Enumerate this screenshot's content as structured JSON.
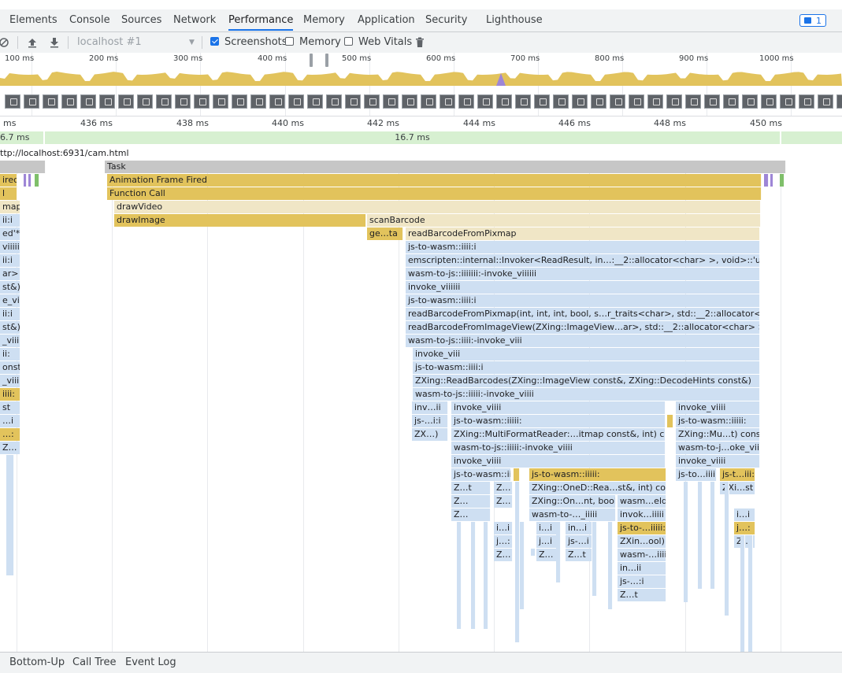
{
  "tabs": [
    "Elements",
    "Console",
    "Sources",
    "Network",
    "Performance",
    "Memory",
    "Application",
    "Security",
    "Lighthouse"
  ],
  "active_tab": "Performance",
  "issues_count": "1",
  "toolbar": {
    "profile_select": "localhost #1",
    "screenshots_label": "Screenshots",
    "screenshots_checked": true,
    "memory_label": "Memory",
    "memory_checked": false,
    "webvitals_label": "Web Vitals",
    "webvitals_checked": false
  },
  "overview_ticks": [
    "100 ms",
    "200 ms",
    "300 ms",
    "400 ms",
    "500 ms",
    "600 ms",
    "700 ms",
    "800 ms",
    "900 ms",
    "1000 ms"
  ],
  "ruler_ticks": [
    "ms",
    "436 ms",
    "438 ms",
    "440 ms",
    "442 ms",
    "444 ms",
    "446 ms",
    "448 ms",
    "450 ms"
  ],
  "frames": [
    "6.7 ms",
    "16.7 ms"
  ],
  "url": "ttp://localhost:6931/cam.html",
  "colors": {
    "task": "#c6c6c6",
    "script": "#e2c35c",
    "script_light": "#f0e6c6",
    "wasm": "#cedff2",
    "accent": "#1a73e8",
    "purple": "#9e86d6",
    "green": "#7fbf6a"
  },
  "flame": {
    "main": [
      "Task",
      "Animation Frame Fired",
      "Function Call",
      "drawVideo",
      "drawImage",
      "scanBarcode",
      "ge…ta",
      "readBarcodeFromPixmap",
      "js-to-wasm::iiii:i",
      "emscripten::internal::Invoker<ReadResult, in…:__2::allocator<char> >, void>::'unnamed'*)",
      "wasm-to-js::iiiiiii:-invoke_viiiiii",
      "invoke_viiiiii",
      "js-to-wasm::iiii:i",
      "readBarcodeFromPixmap(int, int, int, bool, s…r_traits<char>, std::__2::allocator<char> >)",
      "readBarcodeFromImageView(ZXing::ImageView…ar>, std::__2::allocator<char> > const&)",
      "wasm-to-js::iiii:-invoke_viii",
      "invoke_viii",
      "js-to-wasm::iiii:i",
      "ZXing::ReadBarcodes(ZXing::ImageView const&, ZXing::DecodeHints const&)",
      "wasm-to-js::iiiii:-invoke_viiii"
    ],
    "branch_a": [
      "inv…ii",
      "js-…i:i",
      "ZX…)"
    ],
    "branch_b": [
      "invoke_viiii",
      "js-to-wasm::iiiii:",
      "ZXing::MultiFormatReader:…itmap const&, int) const",
      "wasm-to-js::iiiii:-invoke_viiii",
      "invoke_viiii",
      "js-to-wasm::iiiii:"
    ],
    "branch_b_sub": [
      "Z…t",
      "Z…",
      "Z…",
      "Z…",
      "Z…"
    ],
    "branch_c": [
      "js-to-wasm::iiiii:",
      "ZXing::OneD::Rea…st&, int) const",
      "ZXing::On…nt, bool)",
      "wasm-to-…_iiiii",
      "wasm…eld",
      "invok…iiiii",
      "js-to-…iiiii:",
      "ZXin…ool)",
      "wasm-…iiii",
      "in…ii",
      "js-…:i",
      "Z…t"
    ],
    "branch_c_small": [
      "i…i",
      "j…:",
      "Z…",
      "i…i",
      "j…i",
      "Z…",
      "in…i",
      "js-…i",
      "Z…t"
    ],
    "branch_d": [
      "invoke_viiii",
      "js-to-wasm::iiiii:",
      "ZXing::Mu…t) const",
      "wasm-to-j…oke_viiii",
      "invoke_viiii",
      "js-to…iiii:",
      "js-t…iii:",
      "ZXi…st",
      "i…i",
      "j…:",
      "Z…"
    ],
    "left_clip": [
      "ired",
      "l",
      "map",
      "ii:i",
      "ed'*)",
      "viiiiii",
      "ii:i",
      "ar> >)",
      "st&)",
      "e_viii",
      "ii:i",
      "st&)",
      "_viiii",
      "ii:",
      "onst",
      "_viiii",
      "iiii:",
      "st",
      "…i",
      "…:",
      "Z…"
    ]
  },
  "bottom_tabs": [
    "Bottom-Up",
    "Call Tree",
    "Event Log"
  ]
}
